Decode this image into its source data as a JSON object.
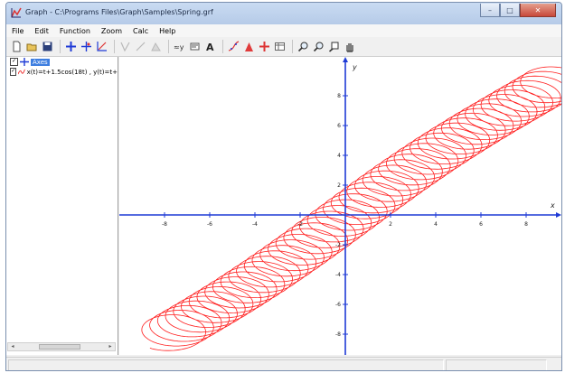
{
  "window": {
    "title": "Graph - C:\\Programs Files\\Graph\\Samples\\Spring.grf",
    "minimize_label": "–",
    "maximize_label": "□",
    "close_label": "✕"
  },
  "menu": [
    "File",
    "Edit",
    "Function",
    "Zoom",
    "Calc",
    "Help"
  ],
  "toolbar_icons": [
    "new-file-icon",
    "open-file-icon",
    "save-icon",
    "add-axes-icon",
    "add-point-icon",
    "insert-function-icon",
    "tangent-icon",
    "relation-icon",
    "shade-icon",
    "series-icon",
    "label-icon",
    "text-icon",
    "trend-icon",
    "evaluate-icon",
    "insert-label-icon",
    "table-icon",
    "zoom-in-icon",
    "zoom-out-icon",
    "zoom-fit-icon",
    "move-hand-icon"
  ],
  "function_list": {
    "items": [
      {
        "label": "Axes",
        "checked": true,
        "selected": true
      },
      {
        "label": "x(t)=t+1.5cos(18t) , y(t)=t+",
        "checked": true,
        "selected": false
      }
    ]
  },
  "graph": {
    "x_axis_label": "x",
    "y_axis_label": "y",
    "x_ticks": [
      "-8",
      "-6",
      "-4",
      "-2",
      "2",
      "4",
      "6",
      "8"
    ],
    "y_ticks": [
      "8",
      "6",
      "4",
      "2",
      "-2",
      "-4",
      "-6",
      "-8"
    ],
    "axis_color": "#1f3bd6",
    "curve_color": "#ff1e1e"
  },
  "scrollbar": {
    "left_arrow": "◂",
    "right_arrow": "▸"
  }
}
